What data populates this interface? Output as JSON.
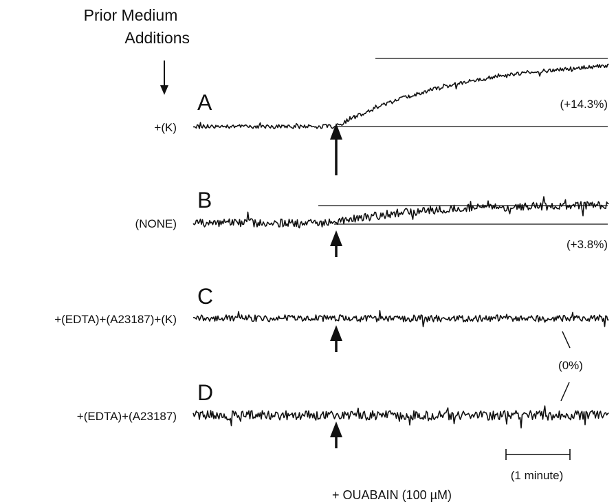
{
  "header": {
    "line1": "Prior Medium",
    "line2": "Additions"
  },
  "traces": [
    {
      "letter": "A",
      "condition": "+(K)",
      "change": "(+14.3%)"
    },
    {
      "letter": "B",
      "condition": "(NONE)",
      "change": "(+3.8%)"
    },
    {
      "letter": "C",
      "condition": "+(EDTA)+(A23187)+(K)",
      "change": ""
    },
    {
      "letter": "D",
      "condition": "+(EDTA)+(A23187)",
      "change": ""
    }
  ],
  "shared_change_label": "(0%)",
  "scale_bar_label": "(1 minute)",
  "addition_label": "+ OUABAIN (100 µM)",
  "chart_data": {
    "type": "line",
    "x_unit": "minutes",
    "ouabain_added_at_min": 0,
    "series": [
      {
        "name": "A",
        "baseline_percent": 0,
        "final_change_percent": 14.3
      },
      {
        "name": "B",
        "baseline_percent": 0,
        "final_change_percent": 3.8
      },
      {
        "name": "C",
        "baseline_percent": 0,
        "final_change_percent": 0
      },
      {
        "name": "D",
        "baseline_percent": 0,
        "final_change_percent": 0
      }
    ],
    "scale_bar_minutes": 1
  }
}
